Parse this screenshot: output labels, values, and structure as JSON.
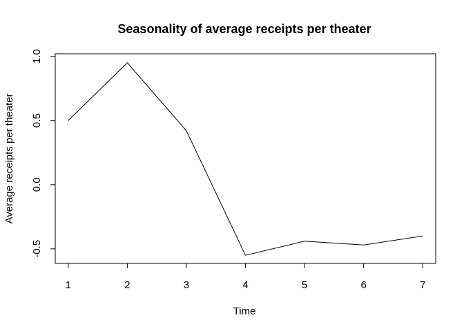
{
  "chart_data": {
    "type": "line",
    "title": "Seasonality of average receipts per theater",
    "xlabel": "Time",
    "ylabel": "Average receipts per theater",
    "x": [
      1,
      2,
      3,
      4,
      5,
      6,
      7
    ],
    "series": [
      {
        "values": [
          0.5,
          0.95,
          0.42,
          -0.55,
          -0.44,
          -0.47,
          -0.4
        ],
        "color": "#000000"
      }
    ],
    "xticks": [
      "1",
      "2",
      "3",
      "4",
      "5",
      "6",
      "7"
    ],
    "yticks": [
      "-0.5",
      "0.0",
      "0.5",
      "1.0"
    ],
    "xlim": [
      0.78,
      7.22
    ],
    "ylim": [
      -0.6135,
      1.02
    ],
    "grid": false,
    "legend": "none"
  }
}
